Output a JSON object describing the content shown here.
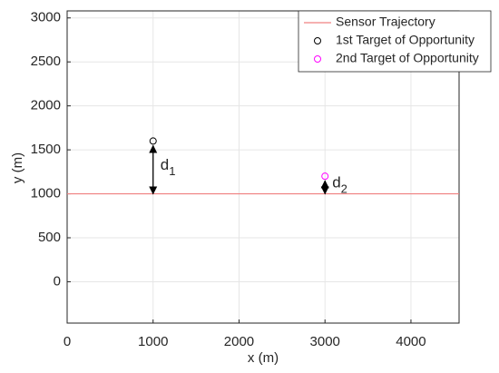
{
  "chart_data": {
    "type": "line",
    "xlabel": "x (m)",
    "ylabel": "y (m)",
    "xlim": [
      0,
      4560
    ],
    "ylim": [
      -470,
      3080
    ],
    "xticks": [
      0,
      1000,
      2000,
      3000,
      4000
    ],
    "yticks": [
      0,
      500,
      1000,
      1500,
      2000,
      2500,
      3000
    ],
    "grid": true,
    "legend": "top-right",
    "series": [
      {
        "name": "Sensor Trajectory",
        "type": "line",
        "color": "#f08080",
        "x": [
          0,
          4560
        ],
        "values": [
          1000,
          1000
        ]
      },
      {
        "name": "1st Target of Opportunity",
        "type": "scatter",
        "color": "#000000",
        "x": [
          1000
        ],
        "values": [
          1600
        ]
      },
      {
        "name": "2nd Target of Opportunity",
        "type": "scatter",
        "color": "#ff00ff",
        "x": [
          3000
        ],
        "values": [
          1200
        ]
      }
    ],
    "annotations": [
      {
        "text": "d",
        "subscript": "1"
      },
      {
        "text": "d",
        "subscript": "2"
      }
    ]
  }
}
